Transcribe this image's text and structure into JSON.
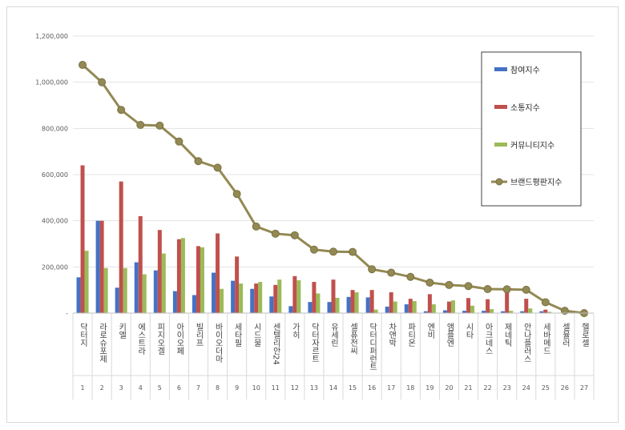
{
  "chart_data": {
    "type": "bar",
    "categories": [
      "닥터지",
      "라로슈포제",
      "키엘",
      "에스트라",
      "피지오겔",
      "아이오페",
      "빌리프",
      "바이오더마",
      "세타필",
      "시드물",
      "센텔리안24",
      "가히",
      "닥터자르트",
      "유세린",
      "셀퓨전씨",
      "닥터디퍼런트",
      "차앤박",
      "파티온",
      "엔비",
      "앰플엔",
      "시타",
      "아크네스",
      "제네틱",
      "안나플러스",
      "세바메드",
      "셀뮬러",
      "헬로셀"
    ],
    "category_index": [
      "1",
      "2",
      "3",
      "4",
      "5",
      "6",
      "7",
      "8",
      "9",
      "10",
      "11",
      "12",
      "13",
      "14",
      "15",
      "16",
      "17",
      "18",
      "19",
      "20",
      "21",
      "22",
      "23",
      "24",
      "25",
      "26",
      "27"
    ],
    "series": [
      {
        "name": "참여지수",
        "type": "bar",
        "color": "#4472c4",
        "values": [
          155000,
          400000,
          110000,
          220000,
          185000,
          95000,
          78000,
          175000,
          140000,
          105000,
          72000,
          30000,
          48000,
          48000,
          70000,
          68000,
          28000,
          38000,
          8000,
          12000,
          10000,
          10000,
          8000,
          8000,
          8000,
          1000,
          1000
        ]
      },
      {
        "name": "소통지수",
        "type": "bar",
        "color": "#c0504d",
        "values": [
          640000,
          400000,
          570000,
          420000,
          360000,
          320000,
          290000,
          345000,
          245000,
          128000,
          122000,
          160000,
          135000,
          145000,
          100000,
          100000,
          90000,
          62000,
          82000,
          50000,
          65000,
          60000,
          88000,
          62000,
          15000,
          2000,
          1000
        ]
      },
      {
        "name": "커뮤니티지수",
        "type": "bar",
        "color": "#9bbb59",
        "values": [
          270000,
          195000,
          195000,
          168000,
          258000,
          325000,
          285000,
          105000,
          128000,
          135000,
          145000,
          142000,
          85000,
          66000,
          90000,
          15000,
          50000,
          52000,
          38000,
          55000,
          32000,
          17000,
          10000,
          20000,
          5000,
          1000,
          1000
        ]
      },
      {
        "name": "브랜드평판지수",
        "type": "line",
        "color": "#938953",
        "values": [
          1075000,
          1000000,
          880000,
          815000,
          812000,
          743000,
          658000,
          630000,
          516000,
          375000,
          344000,
          337000,
          275000,
          266000,
          265000,
          190000,
          175000,
          157000,
          132000,
          122000,
          117000,
          104000,
          103000,
          101000,
          47000,
          10000,
          0
        ]
      }
    ],
    "y_ticks": [
      "-",
      "200,000",
      "400,000",
      "600,000",
      "800,000",
      "1,000,000",
      "1,200,000"
    ],
    "ylim": [
      0,
      1200000
    ],
    "grid": true,
    "legend": "right"
  }
}
